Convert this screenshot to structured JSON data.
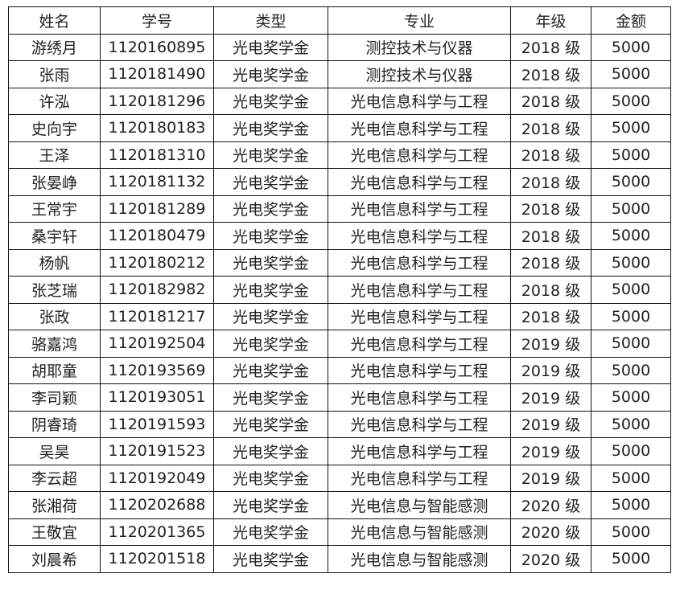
{
  "table": {
    "headers": [
      "姓名",
      "学号",
      "类型",
      "专业",
      "年级",
      "金额"
    ],
    "rows": [
      [
        "游绣月",
        "1120160895",
        "光电奖学金",
        "测控技术与仪器",
        "2018 级",
        "5000"
      ],
      [
        "张雨",
        "1120181490",
        "光电奖学金",
        "测控技术与仪器",
        "2018 级",
        "5000"
      ],
      [
        "许泓",
        "1120181296",
        "光电奖学金",
        "光电信息科学与工程",
        "2018 级",
        "5000"
      ],
      [
        "史向宇",
        "1120180183",
        "光电奖学金",
        "光电信息科学与工程",
        "2018 级",
        "5000"
      ],
      [
        "王泽",
        "1120181310",
        "光电奖学金",
        "光电信息科学与工程",
        "2018 级",
        "5000"
      ],
      [
        "张晏峥",
        "1120181132",
        "光电奖学金",
        "光电信息科学与工程",
        "2018 级",
        "5000"
      ],
      [
        "王常宇",
        "1120181289",
        "光电奖学金",
        "光电信息科学与工程",
        "2018 级",
        "5000"
      ],
      [
        "桑宇轩",
        "1120180479",
        "光电奖学金",
        "光电信息科学与工程",
        "2018 级",
        "5000"
      ],
      [
        "杨帆",
        "1120180212",
        "光电奖学金",
        "光电信息科学与工程",
        "2018 级",
        "5000"
      ],
      [
        "张芝瑞",
        "1120182982",
        "光电奖学金",
        "光电信息科学与工程",
        "2018 级",
        "5000"
      ],
      [
        "张政",
        "1120181217",
        "光电奖学金",
        "光电信息科学与工程",
        "2018 级",
        "5000"
      ],
      [
        "骆嘉鸿",
        "1120192504",
        "光电奖学金",
        "光电信息科学与工程",
        "2019 级",
        "5000"
      ],
      [
        "胡耶童",
        "1120193569",
        "光电奖学金",
        "光电信息科学与工程",
        "2019 级",
        "5000"
      ],
      [
        "李司颖",
        "1120193051",
        "光电奖学金",
        "光电信息科学与工程",
        "2019 级",
        "5000"
      ],
      [
        "阴睿琦",
        "1120191593",
        "光电奖学金",
        "光电信息科学与工程",
        "2019 级",
        "5000"
      ],
      [
        "吴昊",
        "1120191523",
        "光电奖学金",
        "光电信息科学与工程",
        "2019 级",
        "5000"
      ],
      [
        "李云超",
        "1120192049",
        "光电奖学金",
        "光电信息科学与工程",
        "2019 级",
        "5000"
      ],
      [
        "张湘荷",
        "1120202688",
        "光电奖学金",
        "光电信息与智能感测",
        "2020 级",
        "5000"
      ],
      [
        "王敬宜",
        "1120201365",
        "光电奖学金",
        "光电信息与智能感测",
        "2020 级",
        "5000"
      ],
      [
        "刘晨希",
        "1120201518",
        "光电奖学金",
        "光电信息与智能感测",
        "2020 级",
        "5000"
      ]
    ]
  }
}
